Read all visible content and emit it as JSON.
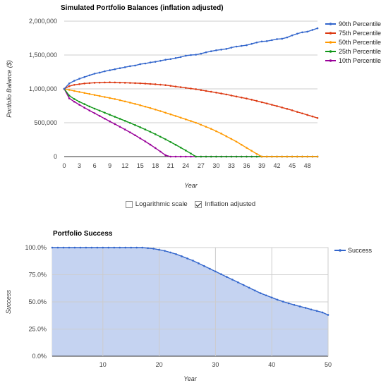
{
  "chart_data": [
    {
      "type": "line",
      "title": "Simulated Portfolio Balances (inflation adjusted)",
      "xlabel": "Year",
      "ylabel": "Portfolio Balance ($)",
      "xlim": [
        0,
        50
      ],
      "ylim": [
        0,
        2000000
      ],
      "x_ticks": [
        "0",
        "3",
        "6",
        "9",
        "12",
        "15",
        "18",
        "21",
        "24",
        "27",
        "30",
        "33",
        "36",
        "39",
        "42",
        "45",
        "48"
      ],
      "y_ticks": [
        "0",
        "500,000",
        "1,000,000",
        "1,500,000",
        "2,000,000"
      ],
      "legend_position": "right",
      "x": [
        0,
        1,
        2,
        3,
        4,
        5,
        6,
        7,
        8,
        9,
        10,
        11,
        12,
        13,
        14,
        15,
        16,
        17,
        18,
        19,
        20,
        21,
        22,
        23,
        24,
        25,
        26,
        27,
        28,
        29,
        30,
        31,
        32,
        33,
        34,
        35,
        36,
        37,
        38,
        39,
        40,
        41,
        42,
        43,
        44,
        45,
        46,
        47,
        48,
        49,
        50
      ],
      "series": [
        {
          "name": "90th Percentile",
          "color": "#3366cc",
          "values": [
            1000000,
            1080000,
            1120000,
            1150000,
            1175000,
            1200000,
            1225000,
            1240000,
            1260000,
            1275000,
            1290000,
            1305000,
            1320000,
            1335000,
            1345000,
            1365000,
            1375000,
            1390000,
            1400000,
            1415000,
            1430000,
            1440000,
            1455000,
            1470000,
            1490000,
            1500000,
            1505000,
            1520000,
            1540000,
            1555000,
            1570000,
            1580000,
            1590000,
            1610000,
            1625000,
            1635000,
            1645000,
            1665000,
            1685000,
            1700000,
            1705000,
            1720000,
            1735000,
            1740000,
            1760000,
            1790000,
            1815000,
            1835000,
            1845000,
            1870000,
            1895000
          ]
        },
        {
          "name": "75th Percentile",
          "color": "#dc3912",
          "values": [
            1000000,
            1040000,
            1060000,
            1070000,
            1080000,
            1085000,
            1090000,
            1092000,
            1095000,
            1097000,
            1095000,
            1092000,
            1090000,
            1088000,
            1085000,
            1082000,
            1078000,
            1073000,
            1068000,
            1062000,
            1055000,
            1045000,
            1035000,
            1025000,
            1015000,
            1005000,
            995000,
            982000,
            970000,
            958000,
            945000,
            932000,
            918000,
            902000,
            887000,
            872000,
            857000,
            840000,
            822000,
            803000,
            785000,
            765000,
            745000,
            725000,
            705000,
            683000,
            660000,
            638000,
            615000,
            593000,
            570000
          ]
        },
        {
          "name": "50th Percentile",
          "color": "#ff9900",
          "values": [
            1000000,
            985000,
            970000,
            955000,
            940000,
            925000,
            910000,
            895000,
            880000,
            865000,
            850000,
            833000,
            815000,
            797000,
            778000,
            758000,
            738000,
            717000,
            695000,
            672000,
            648000,
            624000,
            600000,
            575000,
            550000,
            525000,
            500000,
            470000,
            440000,
            410000,
            375000,
            340000,
            300000,
            260000,
            220000,
            175000,
            130000,
            85000,
            40000,
            0,
            0,
            0,
            0,
            0,
            0,
            0,
            0,
            0,
            0,
            0,
            0
          ]
        },
        {
          "name": "25th Percentile",
          "color": "#109618",
          "values": [
            1000000,
            900000,
            850000,
            810000,
            775000,
            740000,
            708000,
            678000,
            648000,
            618000,
            588000,
            558000,
            528000,
            497000,
            465000,
            433000,
            400000,
            366000,
            330000,
            293000,
            255000,
            215000,
            175000,
            133000,
            90000,
            45000,
            0,
            0,
            0,
            0,
            0,
            0,
            0,
            0,
            0,
            0,
            0,
            0,
            0,
            0,
            0,
            0,
            0,
            0,
            0,
            0,
            0,
            0,
            0,
            0,
            0
          ]
        },
        {
          "name": "10th Percentile",
          "color": "#990099",
          "values": [
            1000000,
            860000,
            810000,
            765000,
            722000,
            680000,
            640000,
            600000,
            560000,
            520000,
            480000,
            440000,
            400000,
            358000,
            315000,
            270000,
            224000,
            176000,
            126000,
            74000,
            20000,
            0,
            0,
            0,
            0,
            0,
            0,
            0,
            0,
            0,
            0,
            0,
            0,
            0,
            0,
            0,
            0,
            0,
            0,
            0,
            0,
            0,
            0,
            0,
            0,
            0,
            0,
            0,
            0,
            0,
            0
          ]
        }
      ]
    },
    {
      "type": "area",
      "title": "Portfolio Success",
      "xlabel": "Year",
      "ylabel": "Success",
      "xlim": [
        1,
        50
      ],
      "ylim": [
        0,
        100
      ],
      "x_ticks": [
        "10",
        "20",
        "30",
        "40",
        "50"
      ],
      "y_ticks": [
        "0.0%",
        "25.0%",
        "50.0%",
        "75.0%",
        "100.0%"
      ],
      "legend_position": "right",
      "x": [
        1,
        2,
        3,
        4,
        5,
        6,
        7,
        8,
        9,
        10,
        11,
        12,
        13,
        14,
        15,
        16,
        17,
        18,
        19,
        20,
        21,
        22,
        23,
        24,
        25,
        26,
        27,
        28,
        29,
        30,
        31,
        32,
        33,
        34,
        35,
        36,
        37,
        38,
        39,
        40,
        41,
        42,
        43,
        44,
        45,
        46,
        47,
        48,
        49,
        50
      ],
      "series": [
        {
          "name": "Success",
          "color": "#3366cc",
          "fill": "#c5d3f1",
          "values": [
            100,
            100,
            100,
            100,
            100,
            100,
            100,
            100,
            100,
            100,
            100,
            100,
            100,
            100,
            100,
            100,
            100,
            99.5,
            99,
            98,
            97,
            95.5,
            94,
            92,
            90,
            88,
            85.5,
            83,
            80.5,
            78,
            75.5,
            73,
            70.5,
            68,
            65.5,
            63,
            60.5,
            58,
            56,
            54,
            52,
            50.3,
            48.7,
            47.2,
            45.8,
            44.5,
            43,
            41.7,
            40.3,
            38
          ]
        }
      ]
    }
  ],
  "controls": {
    "log_scale_label": "Logarithmic scale",
    "log_scale_checked": false,
    "inflation_label": "Inflation adjusted",
    "inflation_checked": true
  }
}
